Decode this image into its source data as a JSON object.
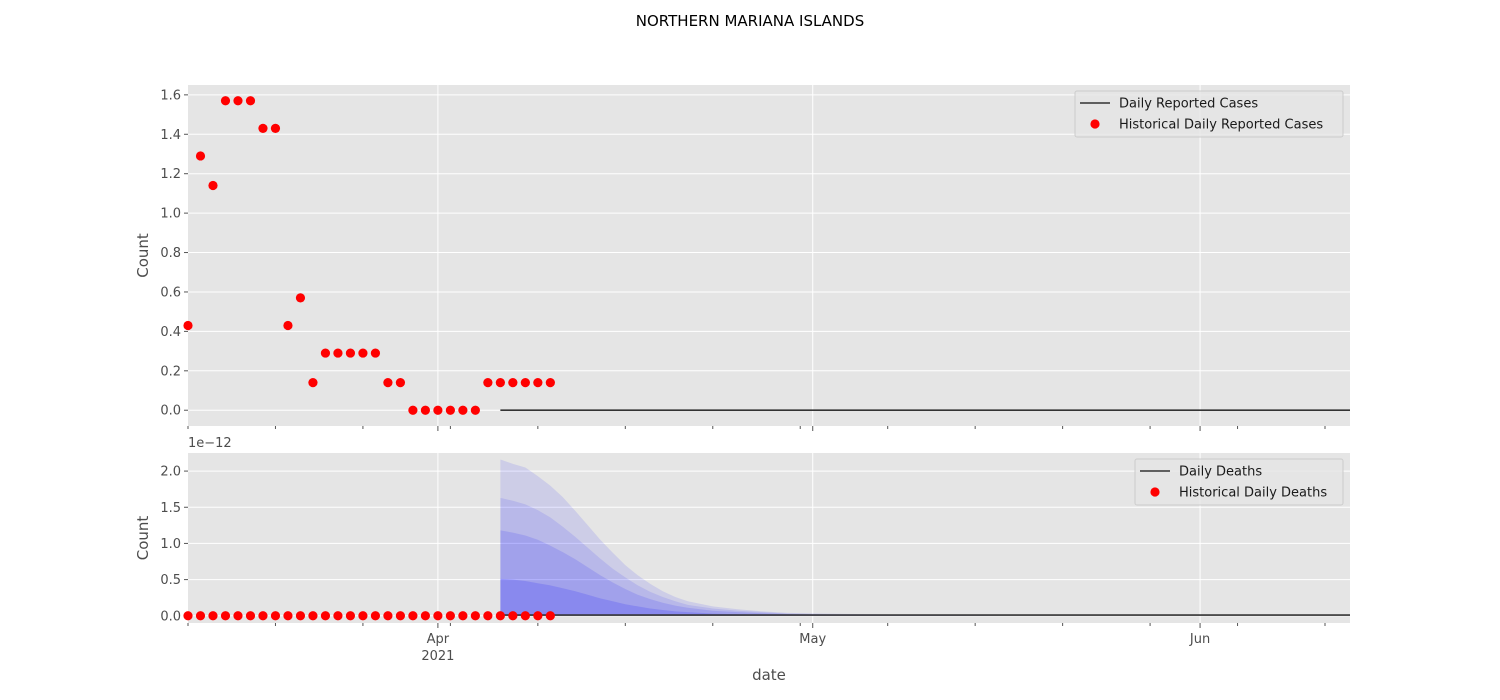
{
  "chart_data": {
    "title": "NORTHERN MARIANA ISLANDS",
    "xlabel": "date",
    "x_range": [
      "2021-03-12",
      "2021-06-13"
    ],
    "x_ticks": [
      {
        "date": "2021-04-01",
        "label": "Apr",
        "sublabel": "2021"
      },
      {
        "date": "2021-05-01",
        "label": "May",
        "sublabel": ""
      },
      {
        "date": "2021-06-01",
        "label": "Jun",
        "sublabel": ""
      }
    ],
    "panels": [
      {
        "type": "scatter",
        "ylabel": "Count",
        "ylim": [
          -0.08,
          1.65
        ],
        "y_ticks": [
          0.0,
          0.2,
          0.4,
          0.6,
          0.8,
          1.0,
          1.2,
          1.4,
          1.6
        ],
        "y_tick_labels": [
          "0.0",
          "0.2",
          "0.4",
          "0.6",
          "0.8",
          "1.0",
          "1.2",
          "1.4",
          "1.6"
        ],
        "offset_label": "",
        "grid": true,
        "legend_position": "top-right",
        "series": [
          {
            "name": "Daily Reported Cases",
            "kind": "line",
            "color": "#333333",
            "points": [
              [
                "2021-04-06",
                0
              ],
              [
                "2021-06-13",
                0
              ]
            ]
          },
          {
            "name": "Historical Daily Reported Cases",
            "kind": "scatter",
            "color": "#ff0000",
            "start": "2021-03-12",
            "values": [
              0.43,
              1.29,
              1.14,
              1.57,
              1.57,
              1.57,
              1.43,
              1.43,
              0.43,
              0.57,
              0.14,
              0.29,
              0.29,
              0.29,
              0.29,
              0.29,
              0.14,
              0.14,
              0,
              0,
              0,
              0,
              0,
              0,
              0.14,
              0.14,
              0.14,
              0.14,
              0.14,
              0.14
            ]
          }
        ]
      },
      {
        "type": "scatter",
        "ylabel": "Count",
        "ylim": [
          -0.1,
          2.25
        ],
        "y_ticks": [
          0.0,
          0.5,
          1.0,
          1.5,
          2.0
        ],
        "y_tick_labels": [
          "0.0",
          "0.5",
          "1.0",
          "1.5",
          "2.0"
        ],
        "offset_label": "1e−12",
        "grid": true,
        "legend_position": "top-right",
        "series": [
          {
            "name": "Daily Deaths",
            "kind": "line",
            "color": "#333333",
            "points": [
              [
                "2021-04-06",
                0.01
              ],
              [
                "2021-06-13",
                0.01
              ]
            ]
          },
          {
            "name": "Historical Daily Deaths",
            "kind": "scatter",
            "color": "#ff0000",
            "start": "2021-03-12",
            "values": [
              0,
              0,
              0,
              0,
              0,
              0,
              0,
              0,
              0,
              0,
              0,
              0,
              0,
              0,
              0,
              0,
              0,
              0,
              0,
              0,
              0,
              0,
              0,
              0,
              0,
              0,
              0,
              0,
              0,
              0
            ]
          }
        ],
        "forecast_bands": {
          "color": "#0000ff",
          "start": "2021-04-06",
          "days": [
            0,
            1,
            2,
            3,
            4,
            5,
            6,
            7,
            8,
            9,
            10,
            11,
            12,
            13,
            14,
            15,
            17,
            19,
            21,
            23,
            26,
            30,
            35,
            40,
            50,
            68
          ],
          "bands": [
            {
              "opacity": 0.1,
              "upper": [
                2.16,
                2.1,
                2.05,
                1.93,
                1.8,
                1.64,
                1.45,
                1.25,
                1.05,
                0.87,
                0.7,
                0.56,
                0.44,
                0.34,
                0.26,
                0.2,
                0.13,
                0.09,
                0.06,
                0.04,
                0.03,
                0.02,
                0.01,
                0.01,
                0.0,
                0.0
              ]
            },
            {
              "opacity": 0.1,
              "upper": [
                1.63,
                1.59,
                1.54,
                1.46,
                1.36,
                1.23,
                1.09,
                0.94,
                0.79,
                0.65,
                0.53,
                0.42,
                0.33,
                0.26,
                0.2,
                0.15,
                0.1,
                0.07,
                0.05,
                0.03,
                0.02,
                0.01,
                0.01,
                0.0,
                0.0,
                0.0
              ]
            },
            {
              "opacity": 0.12,
              "upper": [
                1.18,
                1.15,
                1.11,
                1.05,
                0.97,
                0.88,
                0.78,
                0.67,
                0.56,
                0.46,
                0.37,
                0.29,
                0.23,
                0.18,
                0.14,
                0.11,
                0.07,
                0.05,
                0.035,
                0.025,
                0.015,
                0.01,
                0.005,
                0.0,
                0.0,
                0.0
              ]
            },
            {
              "opacity": 0.15,
              "upper": [
                0.51,
                0.5,
                0.48,
                0.45,
                0.42,
                0.38,
                0.34,
                0.29,
                0.24,
                0.2,
                0.16,
                0.13,
                0.1,
                0.08,
                0.06,
                0.05,
                0.03,
                0.02,
                0.015,
                0.01,
                0.006,
                0.004,
                0.002,
                0.0,
                0.0,
                0.0
              ]
            }
          ]
        }
      }
    ]
  }
}
